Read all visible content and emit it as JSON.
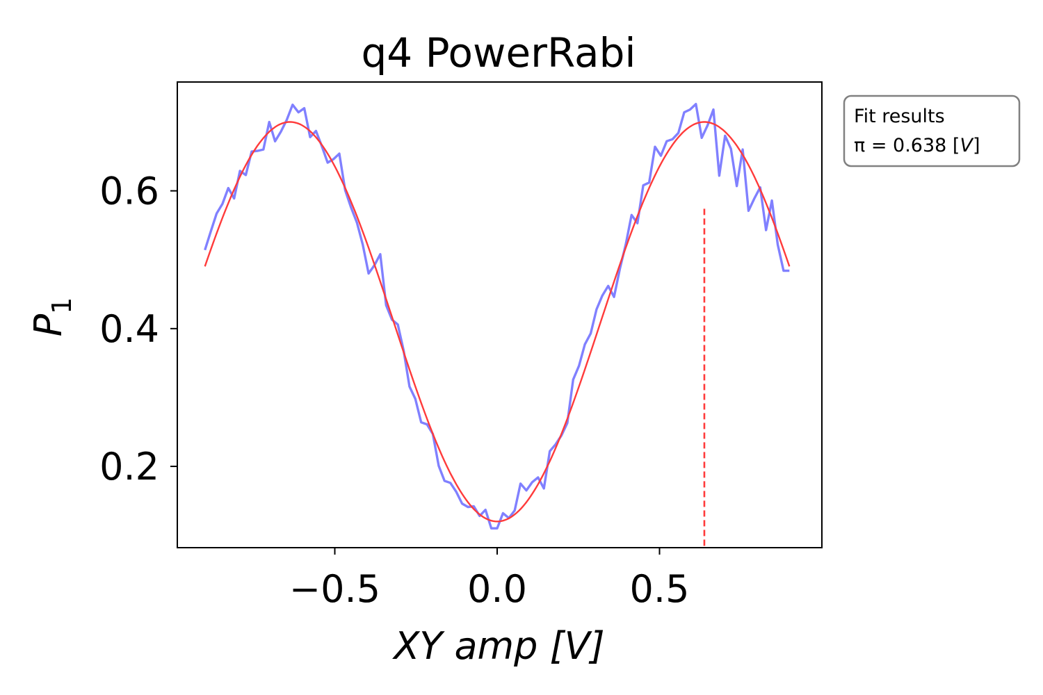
{
  "chart_data": {
    "type": "line",
    "title": "q4 PowerRabi",
    "xlabel": "XY amp [V]",
    "ylabel": "P1",
    "xlim": [
      -0.985,
      1.0
    ],
    "ylim": [
      0.082,
      0.758
    ],
    "xticks": [
      -0.5,
      0.0,
      0.5
    ],
    "xtick_labels": [
      "−0.5",
      "0.0",
      "0.5"
    ],
    "yticks": [
      0.2,
      0.4,
      0.6
    ],
    "ytick_labels": [
      "0.2",
      "0.4",
      "0.6"
    ],
    "grid": false,
    "legend_box": {
      "title": "Fit results",
      "pi_prefix": "π = 0.638 [",
      "pi_unit": "V",
      "pi_suffix": "]",
      "placement": "outside-top-right"
    },
    "series": [
      {
        "role": "measured",
        "color": "#8080ff",
        "x": [
          -0.9,
          -0.882,
          -0.864,
          -0.846,
          -0.828,
          -0.81,
          -0.792,
          -0.774,
          -0.756,
          -0.738,
          -0.72,
          -0.702,
          -0.684,
          -0.666,
          -0.648,
          -0.63,
          -0.612,
          -0.594,
          -0.576,
          -0.558,
          -0.54,
          -0.522,
          -0.504,
          -0.486,
          -0.468,
          -0.45,
          -0.432,
          -0.414,
          -0.396,
          -0.378,
          -0.36,
          -0.342,
          -0.324,
          -0.306,
          -0.288,
          -0.27,
          -0.252,
          -0.234,
          -0.216,
          -0.198,
          -0.18,
          -0.162,
          -0.144,
          -0.126,
          -0.108,
          -0.09,
          -0.072,
          -0.054,
          -0.036,
          -0.018,
          0.0,
          0.018,
          0.036,
          0.054,
          0.072,
          0.09,
          0.108,
          0.126,
          0.144,
          0.162,
          0.18,
          0.198,
          0.216,
          0.234,
          0.252,
          0.27,
          0.288,
          0.306,
          0.324,
          0.342,
          0.36,
          0.378,
          0.396,
          0.414,
          0.432,
          0.45,
          0.468,
          0.486,
          0.504,
          0.522,
          0.54,
          0.558,
          0.576,
          0.594,
          0.612,
          0.63,
          0.648,
          0.666,
          0.684,
          0.702,
          0.72,
          0.738,
          0.756,
          0.774,
          0.792,
          0.81,
          0.828,
          0.846,
          0.864,
          0.882,
          0.9
        ],
        "y": [
          0.514,
          0.541,
          0.567,
          0.581,
          0.604,
          0.589,
          0.629,
          0.623,
          0.657,
          0.658,
          0.66,
          0.7,
          0.672,
          0.686,
          0.703,
          0.725,
          0.714,
          0.72,
          0.678,
          0.687,
          0.665,
          0.641,
          0.646,
          0.654,
          0.601,
          0.576,
          0.554,
          0.522,
          0.48,
          0.492,
          0.508,
          0.434,
          0.413,
          0.406,
          0.368,
          0.316,
          0.298,
          0.264,
          0.261,
          0.247,
          0.201,
          0.179,
          0.176,
          0.163,
          0.146,
          0.141,
          0.142,
          0.128,
          0.137,
          0.11,
          0.11,
          0.132,
          0.125,
          0.136,
          0.175,
          0.165,
          0.177,
          0.184,
          0.168,
          0.222,
          0.232,
          0.245,
          0.263,
          0.326,
          0.346,
          0.377,
          0.393,
          0.428,
          0.448,
          0.462,
          0.446,
          0.487,
          0.522,
          0.565,
          0.553,
          0.608,
          0.612,
          0.664,
          0.651,
          0.672,
          0.675,
          0.684,
          0.714,
          0.718,
          0.726,
          0.677,
          0.695,
          0.718,
          0.622,
          0.68,
          0.661,
          0.607,
          0.66,
          0.571,
          0.589,
          0.605,
          0.543,
          0.586,
          0.522,
          0.484,
          0.484
        ]
      },
      {
        "role": "fit",
        "color": "#ff3b3b",
        "offset": 0.41,
        "amplitude": 0.29,
        "pi_amplitude": 0.638
      }
    ],
    "pi_marker": {
      "x": 0.638,
      "y_top": 0.574,
      "style": "dashed",
      "color": "#ff3b3b"
    }
  }
}
